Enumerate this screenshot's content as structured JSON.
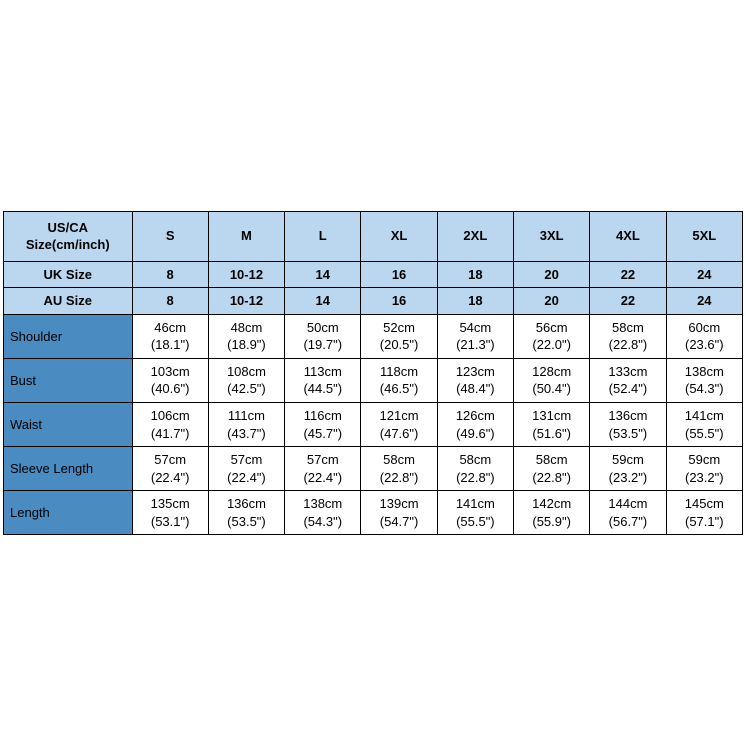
{
  "colors": {
    "header_bg": "#bbd7ef",
    "rowlabel_bg": "#4a8bc2",
    "border": "#000000",
    "page_bg": "#ffffff",
    "text": "#000000"
  },
  "table": {
    "col_widths": {
      "label": 128,
      "data": 76
    },
    "font_size": 13,
    "header_rows": [
      {
        "label": "US/CA\nSize(cm/inch)",
        "cells": [
          "S",
          "M",
          "L",
          "XL",
          "2XL",
          "3XL",
          "4XL",
          "5XL"
        ]
      },
      {
        "label": "UK Size",
        "cells": [
          "8",
          "10-12",
          "14",
          "16",
          "18",
          "20",
          "22",
          "24"
        ]
      },
      {
        "label": "AU Size",
        "cells": [
          "8",
          "10-12",
          "14",
          "16",
          "18",
          "20",
          "22",
          "24"
        ]
      }
    ],
    "body_rows": [
      {
        "label": "Shoulder",
        "cells": [
          {
            "cm": "46cm",
            "in": "(18.1\")"
          },
          {
            "cm": "48cm",
            "in": "(18.9\")"
          },
          {
            "cm": "50cm",
            "in": "(19.7\")"
          },
          {
            "cm": "52cm",
            "in": "(20.5\")"
          },
          {
            "cm": "54cm",
            "in": "(21.3\")"
          },
          {
            "cm": "56cm",
            "in": "(22.0\")"
          },
          {
            "cm": "58cm",
            "in": "(22.8\")"
          },
          {
            "cm": "60cm",
            "in": "(23.6\")"
          }
        ]
      },
      {
        "label": "Bust",
        "cells": [
          {
            "cm": "103cm",
            "in": "(40.6\")"
          },
          {
            "cm": "108cm",
            "in": "(42.5\")"
          },
          {
            "cm": "113cm",
            "in": "(44.5\")"
          },
          {
            "cm": "118cm",
            "in": "(46.5\")"
          },
          {
            "cm": "123cm",
            "in": "(48.4\")"
          },
          {
            "cm": "128cm",
            "in": "(50.4\")"
          },
          {
            "cm": "133cm",
            "in": "(52.4\")"
          },
          {
            "cm": "138cm",
            "in": "(54.3\")"
          }
        ]
      },
      {
        "label": "Waist",
        "cells": [
          {
            "cm": "106cm",
            "in": "(41.7\")"
          },
          {
            "cm": "111cm",
            "in": "(43.7\")"
          },
          {
            "cm": "116cm",
            "in": "(45.7\")"
          },
          {
            "cm": "121cm",
            "in": "(47.6\")"
          },
          {
            "cm": "126cm",
            "in": "(49.6\")"
          },
          {
            "cm": "131cm",
            "in": "(51.6\")"
          },
          {
            "cm": "136cm",
            "in": "(53.5\")"
          },
          {
            "cm": "141cm",
            "in": "(55.5\")"
          }
        ]
      },
      {
        "label": "Sleeve Length",
        "cells": [
          {
            "cm": "57cm",
            "in": "(22.4\")"
          },
          {
            "cm": "57cm",
            "in": "(22.4\")"
          },
          {
            "cm": "57cm",
            "in": "(22.4\")"
          },
          {
            "cm": "58cm",
            "in": "(22.8\")"
          },
          {
            "cm": "58cm",
            "in": "(22.8\")"
          },
          {
            "cm": "58cm",
            "in": "(22.8\")"
          },
          {
            "cm": "59cm",
            "in": "(23.2\")"
          },
          {
            "cm": "59cm",
            "in": "(23.2\")"
          }
        ]
      },
      {
        "label": "Length",
        "cells": [
          {
            "cm": "135cm",
            "in": "(53.1\")"
          },
          {
            "cm": "136cm",
            "in": "(53.5\")"
          },
          {
            "cm": "138cm",
            "in": "(54.3\")"
          },
          {
            "cm": "139cm",
            "in": "(54.7\")"
          },
          {
            "cm": "141cm",
            "in": "(55.5\")"
          },
          {
            "cm": "142cm",
            "in": "(55.9\")"
          },
          {
            "cm": "144cm",
            "in": "(56.7\")"
          },
          {
            "cm": "145cm",
            "in": "(57.1\")"
          }
        ]
      }
    ]
  }
}
